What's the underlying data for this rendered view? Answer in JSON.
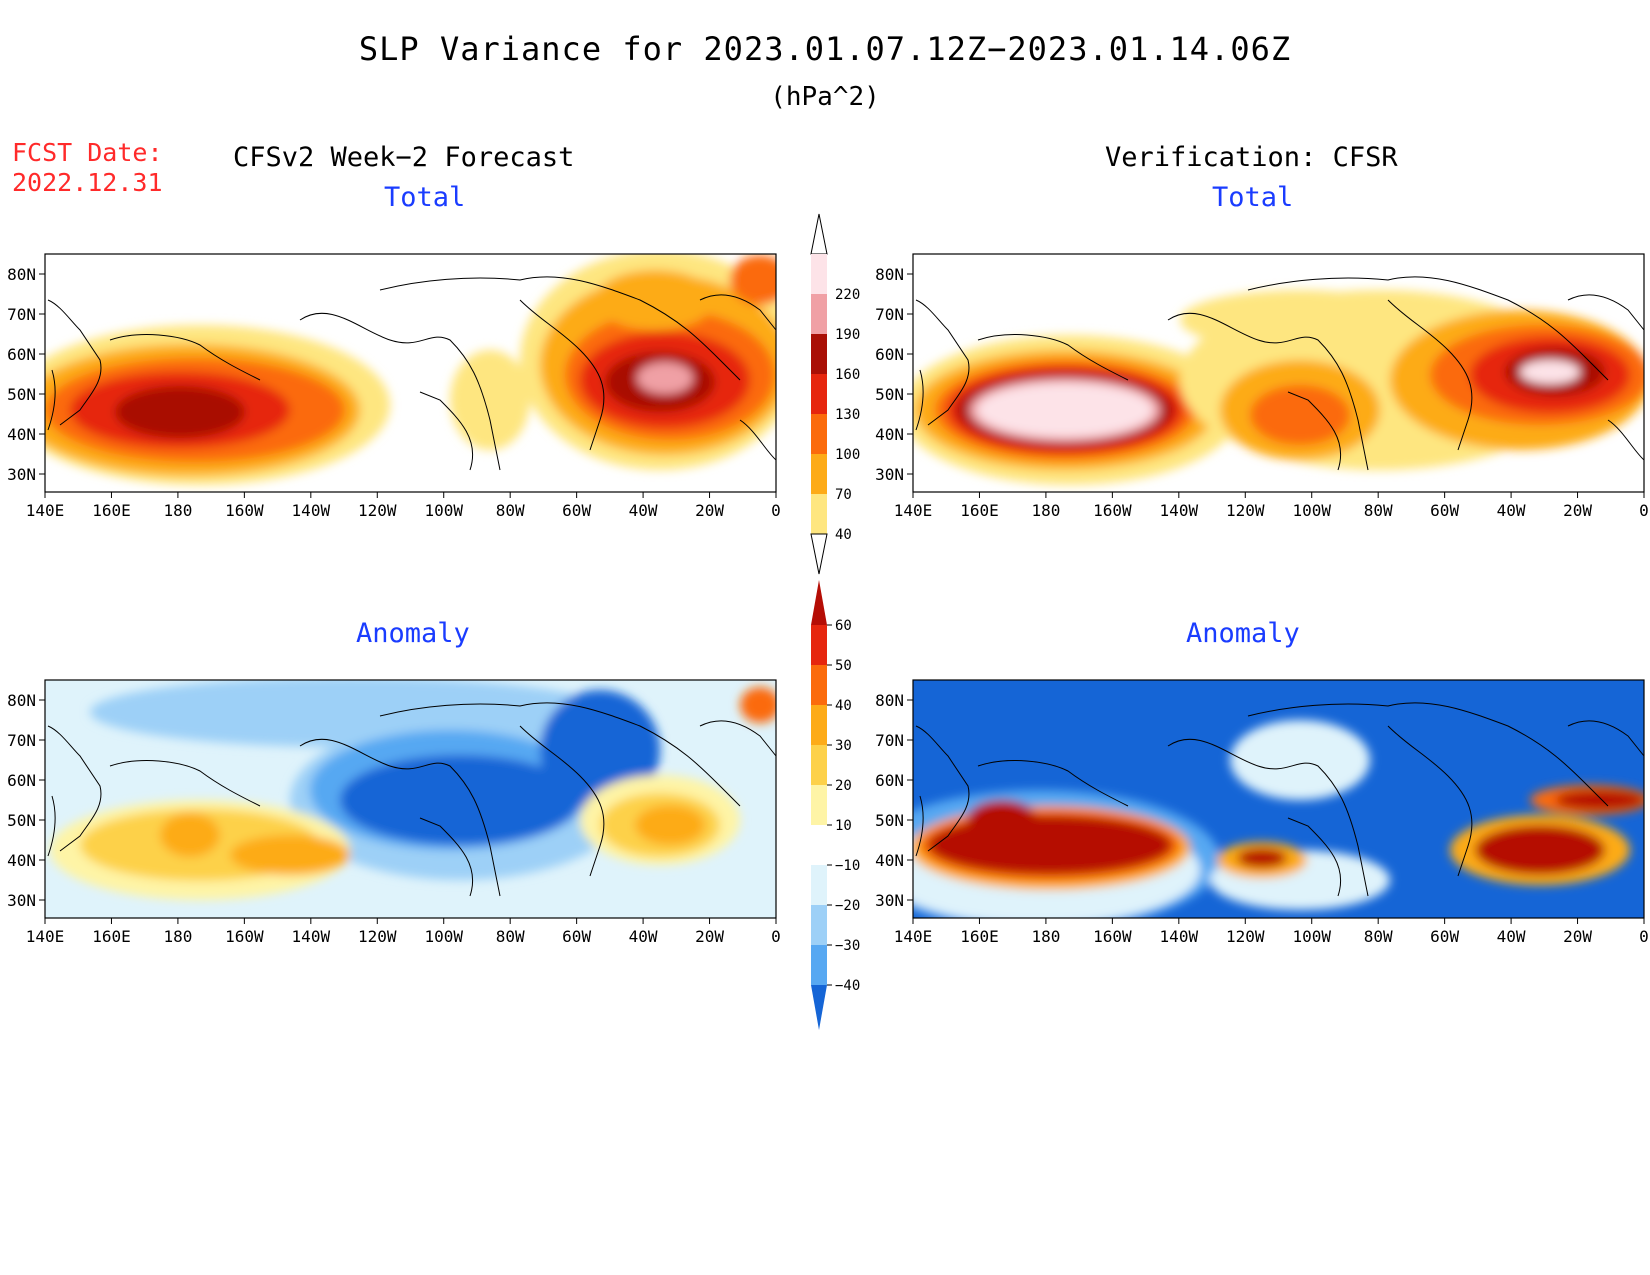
{
  "title": "SLP Variance for 2023.01.07.12Z−2023.01.14.06Z",
  "units": "(hPa^2)",
  "forecast_date_label": "FCST Date:",
  "forecast_date": "2022.12.31",
  "left_heading": "CFSv2 Week−2 Forecast",
  "right_heading": "Verification: CFSR",
  "panel_labels": {
    "total": "Total",
    "anomaly": "Anomaly"
  },
  "lat_ticks": [
    "80N",
    "70N",
    "60N",
    "50N",
    "40N",
    "30N"
  ],
  "lon_ticks": [
    "140E",
    "160E",
    "180",
    "160W",
    "140W",
    "120W",
    "100W",
    "80W",
    "60W",
    "40W",
    "20W",
    "0"
  ],
  "total_colorbar": {
    "levels": [
      "40",
      "70",
      "100",
      "130",
      "160",
      "190",
      "220"
    ],
    "colors": [
      "#fee680",
      "#fdab18",
      "#fb6b0c",
      "#e6260e",
      "#a90f06",
      "#f0a0a5",
      "#fde3e8"
    ]
  },
  "anomaly_colorbar": {
    "levels": [
      "60",
      "50",
      "40",
      "30",
      "20",
      "10",
      "−10",
      "−20",
      "−30",
      "−40"
    ],
    "colors": [
      "#b50d05",
      "#e6260e",
      "#fb6b0c",
      "#fdab18",
      "#fdd14a",
      "#fef4a6",
      "#ffffff",
      "#dff3fb",
      "#9dd0f7",
      "#57a8f2",
      "#1565d6"
    ]
  },
  "panels": [
    {
      "id": "forecast-total",
      "field": "total",
      "model": "CFSv2 Week-2 Forecast",
      "features": [
        "variance maximum ~190 near 45N 180",
        "variance maximum ~220 near 50N 35W"
      ]
    },
    {
      "id": "verification-total",
      "field": "total",
      "model": "CFSR",
      "features": [
        "variance maximum >220 near 42N 170W",
        "variance maximum >220 near 52N 30W"
      ]
    },
    {
      "id": "forecast-anomaly",
      "field": "anomaly",
      "model": "CFSv2 Week-2 Forecast",
      "features": [
        "negative anomaly over North America",
        "positive anomaly near 40N 140W",
        "positive anomaly near 45N 30W"
      ]
    },
    {
      "id": "verification-anomaly",
      "field": "anomaly",
      "model": "CFSR",
      "features": [
        "positive anomaly >60 near 42N 170W",
        "positive anomaly >60 near 40N 30W",
        "negative anomaly over high latitudes"
      ]
    }
  ]
}
